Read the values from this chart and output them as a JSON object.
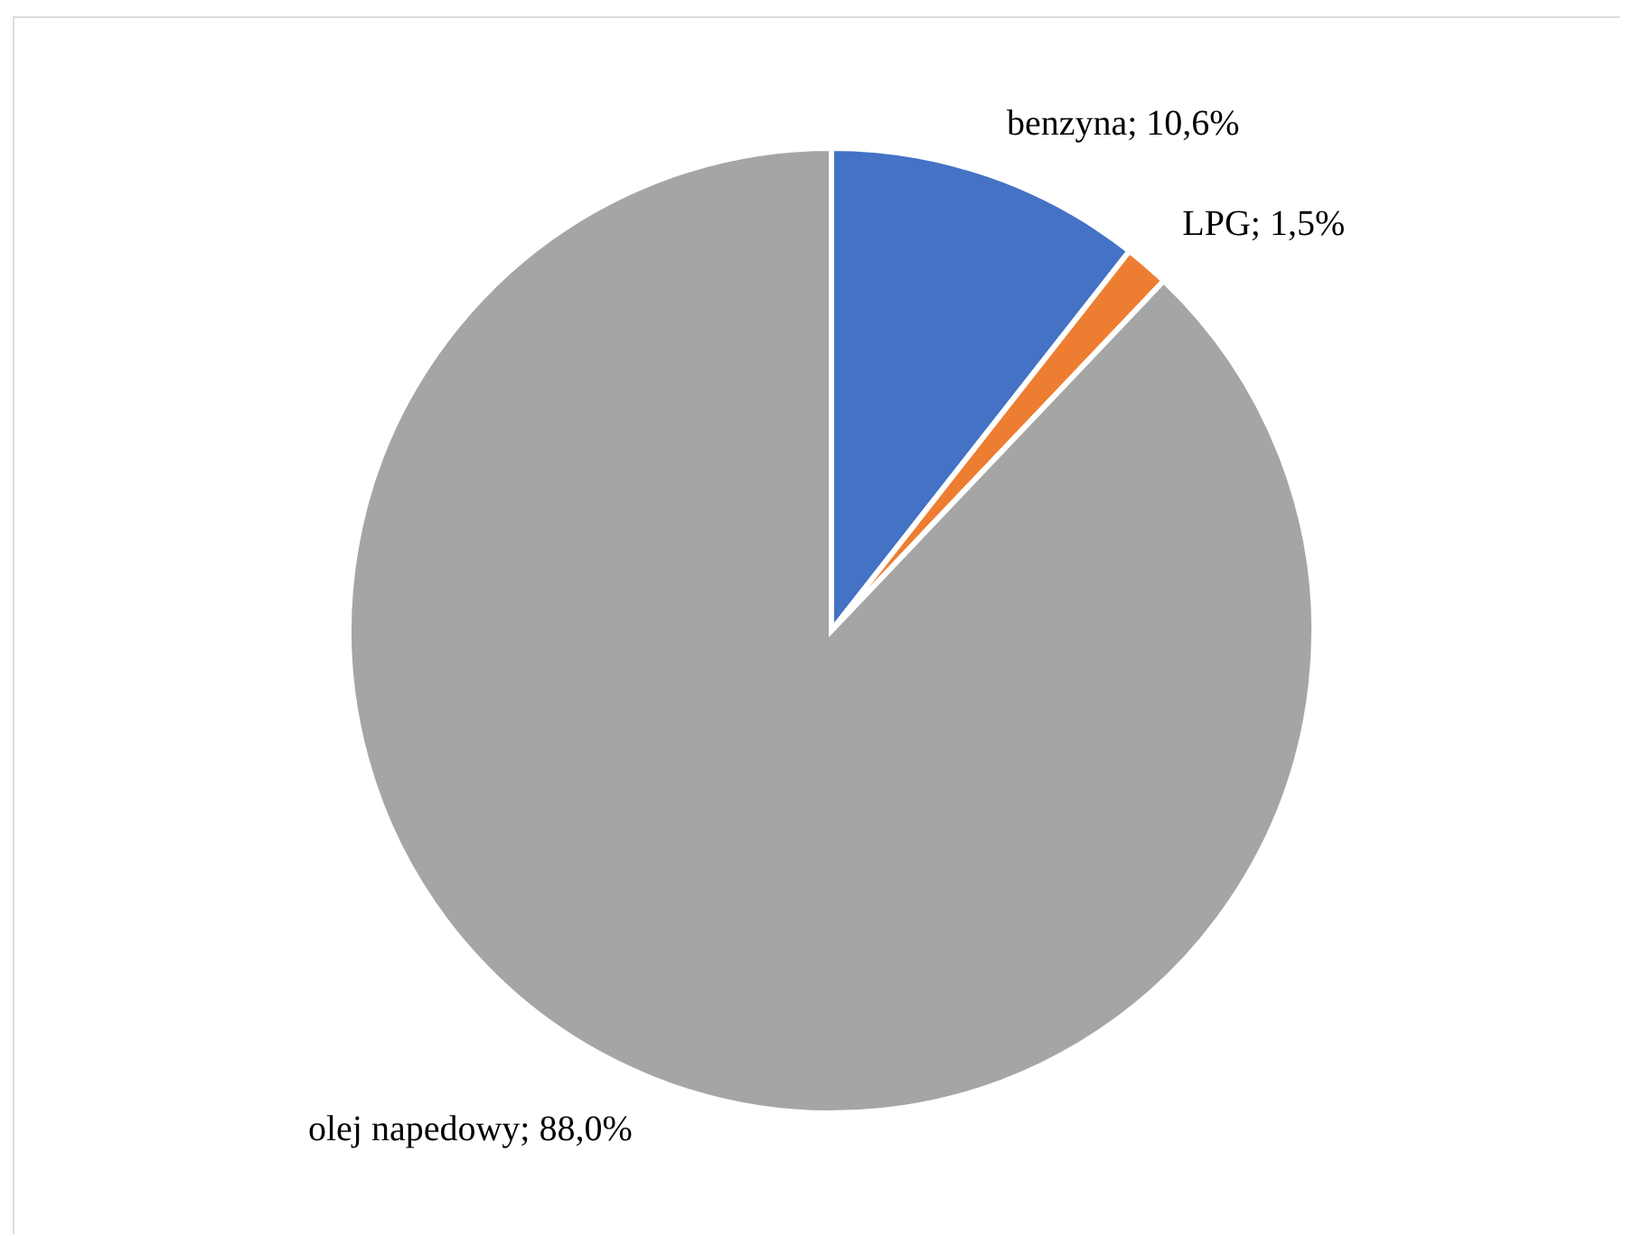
{
  "chart_data": {
    "type": "pie",
    "categories": [
      "benzyna",
      "LPG",
      "olej napedowy"
    ],
    "values": [
      10.6,
      1.5,
      88.0
    ],
    "colors": [
      "#4472c4",
      "#ed7d31",
      "#a5a5a5"
    ],
    "value_labels": [
      "10,6%",
      "1,5%",
      "88,0%"
    ]
  }
}
